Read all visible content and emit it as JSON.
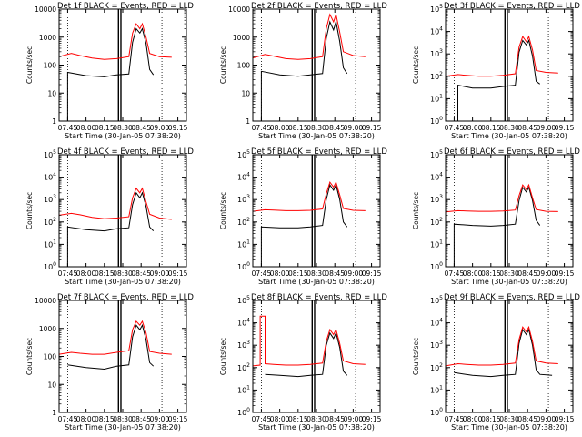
{
  "chart_data": [
    {
      "type": "line",
      "title": "Det 1f BLACK = Events, RED = LLD",
      "xlabel": "Start Time (30-Jan-05 07:38:20)",
      "ylabel": "Counts/sec",
      "yscale": "log",
      "ytick_style": "plain",
      "ylim": [
        1,
        10000
      ],
      "ytick_labels": [
        "1",
        "10",
        "100",
        "1000",
        "10000"
      ],
      "xtick_labels": [
        "07:45",
        "08:00",
        "08:15",
        "08:30",
        "08:45",
        "09:00",
        "09:15"
      ],
      "series": [
        {
          "name": "BLACK = Events",
          "color": "#000000",
          "x": [
            "07:45",
            "07:45",
            "08:00",
            "08:15",
            "08:25",
            "08:35",
            "08:38",
            "08:41",
            "08:44",
            "08:46",
            "08:49",
            "08:52",
            "08:55"
          ],
          "y": [
            1,
            55,
            42,
            38,
            45,
            48,
            650,
            2000,
            1400,
            2000,
            600,
            70,
            45
          ]
        },
        {
          "name": "RED = LLD",
          "color": "#ff0000",
          "x": [
            "07:38",
            "07:48",
            "07:55",
            "08:05",
            "08:15",
            "08:25",
            "08:35",
            "08:38",
            "08:41",
            "08:44",
            "08:46",
            "08:49",
            "08:52",
            "09:00",
            "09:10"
          ],
          "y": [
            200,
            260,
            220,
            180,
            160,
            170,
            200,
            1400,
            3000,
            2000,
            3000,
            1000,
            260,
            200,
            190
          ]
        }
      ]
    },
    {
      "type": "line",
      "title": "Det 2f BLACK = Events, RED = LLD",
      "xlabel": "Start Time (30-Jan-05 07:38:20)",
      "ylabel": "Counts/sec",
      "yscale": "log",
      "ytick_style": "plain",
      "ylim": [
        1,
        10000
      ],
      "ytick_labels": [
        "1",
        "10",
        "100",
        "1000",
        "10000"
      ],
      "xtick_labels": [
        "07:45",
        "08:00",
        "08:15",
        "08:30",
        "08:45",
        "09:00",
        "09:15"
      ],
      "series": [
        {
          "name": "BLACK = Events",
          "color": "#000000",
          "x": [
            "07:45",
            "07:45",
            "08:00",
            "08:15",
            "08:25",
            "08:35",
            "08:38",
            "08:41",
            "08:44",
            "08:46",
            "08:49",
            "08:52",
            "08:55"
          ],
          "y": [
            1,
            60,
            45,
            40,
            45,
            50,
            900,
            3500,
            1800,
            3600,
            700,
            80,
            50
          ]
        },
        {
          "name": "RED = LLD",
          "color": "#ff0000",
          "x": [
            "07:38",
            "07:48",
            "07:55",
            "08:05",
            "08:15",
            "08:25",
            "08:35",
            "08:38",
            "08:41",
            "08:44",
            "08:46",
            "08:49",
            "08:52",
            "09:00",
            "09:10"
          ],
          "y": [
            180,
            240,
            210,
            170,
            160,
            170,
            200,
            2000,
            6500,
            3500,
            6500,
            1500,
            300,
            220,
            200
          ]
        }
      ]
    },
    {
      "type": "line",
      "title": "Det 3f BLACK = Events, RED = LLD",
      "xlabel": "Start Time (30-Jan-05 07:38:20)",
      "ylabel": "Counts/sec",
      "yscale": "log",
      "ytick_style": "exp",
      "ylim": [
        1,
        100000
      ],
      "ytick_labels": [
        "10^0",
        "10^1",
        "10^2",
        "10^3",
        "10^4",
        "10^5"
      ],
      "xtick_labels": [
        "07:45",
        "08:00",
        "08:15",
        "08:30",
        "08:45",
        "09:00",
        "09:15"
      ],
      "series": [
        {
          "name": "BLACK = Events",
          "color": "#000000",
          "x": [
            "07:48",
            "07:48",
            "08:00",
            "08:15",
            "08:25",
            "08:35",
            "08:38",
            "08:41",
            "08:44",
            "08:46",
            "08:49",
            "08:52",
            "08:55"
          ],
          "y": [
            1,
            40,
            30,
            30,
            35,
            40,
            1200,
            4000,
            2500,
            4000,
            800,
            60,
            45
          ]
        },
        {
          "name": "RED = LLD",
          "color": "#ff0000",
          "x": [
            "07:38",
            "07:48",
            "07:55",
            "08:05",
            "08:15",
            "08:25",
            "08:35",
            "08:38",
            "08:41",
            "08:44",
            "08:46",
            "08:49",
            "08:52",
            "09:00",
            "09:10"
          ],
          "y": [
            100,
            120,
            110,
            100,
            100,
            110,
            130,
            2000,
            6000,
            3500,
            6000,
            1500,
            180,
            150,
            140
          ]
        }
      ]
    },
    {
      "type": "line",
      "title": "Det 4f BLACK = Events, RED = LLD",
      "xlabel": "Start Time (30-Jan-05 07:38:20)",
      "ylabel": "Counts/sec",
      "yscale": "log",
      "ytick_style": "exp",
      "ylim": [
        1,
        100000
      ],
      "ytick_labels": [
        "10^0",
        "10^1",
        "10^2",
        "10^3",
        "10^4",
        "10^5"
      ],
      "xtick_labels": [
        "07:45",
        "08:00",
        "08:15",
        "08:30",
        "08:45",
        "09:00",
        "09:15"
      ],
      "series": [
        {
          "name": "BLACK = Events",
          "color": "#000000",
          "x": [
            "07:45",
            "07:45",
            "08:00",
            "08:15",
            "08:25",
            "08:35",
            "08:38",
            "08:41",
            "08:44",
            "08:46",
            "08:49",
            "08:52",
            "08:55"
          ],
          "y": [
            1,
            60,
            45,
            40,
            50,
            55,
            600,
            2000,
            1200,
            2000,
            500,
            60,
            40
          ]
        },
        {
          "name": "RED = LLD",
          "color": "#ff0000",
          "x": [
            "07:38",
            "07:48",
            "07:55",
            "08:05",
            "08:15",
            "08:25",
            "08:35",
            "08:38",
            "08:41",
            "08:44",
            "08:46",
            "08:49",
            "08:52",
            "09:00",
            "09:10"
          ],
          "y": [
            200,
            240,
            210,
            160,
            140,
            150,
            170,
            1200,
            3200,
            2000,
            3200,
            800,
            220,
            150,
            130
          ]
        }
      ]
    },
    {
      "type": "line",
      "title": "Det 5f BLACK = Events, RED = LLD",
      "xlabel": "Start Time (30-Jan-05 07:38:20)",
      "ylabel": "Counts/sec",
      "yscale": "log",
      "ytick_style": "exp",
      "ylim": [
        1,
        100000
      ],
      "ytick_labels": [
        "10^0",
        "10^1",
        "10^2",
        "10^3",
        "10^4",
        "10^5"
      ],
      "xtick_labels": [
        "07:45",
        "08:00",
        "08:15",
        "08:30",
        "08:45",
        "09:00",
        "09:15"
      ],
      "series": [
        {
          "name": "BLACK = Events",
          "color": "#000000",
          "x": [
            "07:45",
            "07:45",
            "08:00",
            "08:15",
            "08:25",
            "08:35",
            "08:38",
            "08:41",
            "08:44",
            "08:46",
            "08:49",
            "08:52",
            "08:55"
          ],
          "y": [
            1,
            60,
            55,
            55,
            60,
            70,
            1000,
            4500,
            2600,
            4500,
            1000,
            100,
            60
          ]
        },
        {
          "name": "RED = LLD",
          "color": "#ff0000",
          "x": [
            "07:38",
            "07:48",
            "07:55",
            "08:05",
            "08:15",
            "08:25",
            "08:35",
            "08:38",
            "08:41",
            "08:44",
            "08:46",
            "08:49",
            "08:52",
            "09:00",
            "09:10"
          ],
          "y": [
            300,
            350,
            340,
            320,
            320,
            330,
            380,
            1800,
            6000,
            3600,
            6000,
            1600,
            400,
            330,
            320
          ]
        }
      ]
    },
    {
      "type": "line",
      "title": "Det 6f BLACK = Events, RED = LLD",
      "xlabel": "Start Time (30-Jan-05 07:38:20)",
      "ylabel": "Counts/sec",
      "yscale": "log",
      "ytick_style": "exp",
      "ylim": [
        1,
        100000
      ],
      "ytick_labels": [
        "10^0",
        "10^1",
        "10^2",
        "10^3",
        "10^4",
        "10^5"
      ],
      "xtick_labels": [
        "07:45",
        "08:00",
        "08:15",
        "08:30",
        "08:45",
        "09:00",
        "09:15"
      ],
      "series": [
        {
          "name": "BLACK = Events",
          "color": "#000000",
          "x": [
            "07:45",
            "07:45",
            "08:00",
            "08:15",
            "08:25",
            "08:35",
            "08:38",
            "08:41",
            "08:44",
            "08:46",
            "08:49",
            "08:52",
            "08:55"
          ],
          "y": [
            1,
            80,
            70,
            65,
            70,
            80,
            900,
            3500,
            2200,
            3500,
            900,
            120,
            70
          ]
        },
        {
          "name": "RED = LLD",
          "color": "#ff0000",
          "x": [
            "07:38",
            "07:48",
            "07:55",
            "08:05",
            "08:15",
            "08:25",
            "08:35",
            "08:38",
            "08:41",
            "08:44",
            "08:46",
            "08:49",
            "08:52",
            "09:00",
            "09:10"
          ],
          "y": [
            280,
            320,
            310,
            300,
            300,
            310,
            340,
            1500,
            4500,
            2800,
            4500,
            1200,
            360,
            300,
            290
          ]
        }
      ]
    },
    {
      "type": "line",
      "title": "Det 7f BLACK = Events, RED = LLD",
      "xlabel": "Start Time (30-Jan-05 07:38:20)",
      "ylabel": "Counts/sec",
      "yscale": "log",
      "ytick_style": "plain",
      "ylim": [
        1,
        10000
      ],
      "ytick_labels": [
        "1",
        "10",
        "100",
        "1000",
        "10000"
      ],
      "xtick_labels": [
        "07:45",
        "08:00",
        "08:15",
        "08:30",
        "08:45",
        "09:00",
        "09:15"
      ],
      "series": [
        {
          "name": "BLACK = Events",
          "color": "#000000",
          "x": [
            "07:45",
            "08:00",
            "08:15",
            "08:25",
            "08:35",
            "08:38",
            "08:41",
            "08:44",
            "08:46",
            "08:49",
            "08:52",
            "08:55"
          ],
          "y": [
            50,
            40,
            35,
            45,
            50,
            500,
            1300,
            900,
            1300,
            400,
            60,
            45
          ]
        },
        {
          "name": "RED = LLD",
          "color": "#ff0000",
          "x": [
            "07:38",
            "07:48",
            "07:55",
            "08:05",
            "08:15",
            "08:25",
            "08:35",
            "08:38",
            "08:41",
            "08:44",
            "08:46",
            "08:49",
            "08:52",
            "09:00",
            "09:10"
          ],
          "y": [
            120,
            140,
            130,
            120,
            120,
            140,
            160,
            900,
            1800,
            1300,
            1800,
            700,
            150,
            130,
            120
          ]
        }
      ]
    },
    {
      "type": "line",
      "title": "Det 8f BLACK = Events, RED = LLD",
      "xlabel": "Start Time (30-Jan-05 07:38:20)",
      "ylabel": "Counts/sec",
      "yscale": "log",
      "ytick_style": "exp",
      "ylim": [
        1,
        100000
      ],
      "ytick_labels": [
        "10^0",
        "10^1",
        "10^2",
        "10^3",
        "10^4",
        "10^5"
      ],
      "xtick_labels": [
        "07:45",
        "08:00",
        "08:15",
        "08:30",
        "08:45",
        "09:00",
        "09:15"
      ],
      "series": [
        {
          "name": "BLACK = Events",
          "color": "#000000",
          "x": [
            "07:48",
            "08:00",
            "08:15",
            "08:25",
            "08:35",
            "08:38",
            "08:41",
            "08:44",
            "08:46",
            "08:49",
            "08:52",
            "08:55"
          ],
          "y": [
            50,
            45,
            40,
            45,
            50,
            1000,
            3500,
            2000,
            3500,
            800,
            70,
            45
          ]
        },
        {
          "name": "RED = LLD",
          "color": "#ff0000",
          "x": [
            "07:38",
            "07:44",
            "07:44",
            "07:48",
            "07:48",
            "07:55",
            "08:05",
            "08:15",
            "08:25",
            "08:35",
            "08:38",
            "08:41",
            "08:44",
            "08:46",
            "08:49",
            "08:52",
            "09:00",
            "09:10"
          ],
          "y": [
            120,
            130,
            20000,
            20000,
            150,
            140,
            130,
            130,
            140,
            160,
            1500,
            5000,
            3000,
            5000,
            1200,
            200,
            150,
            140
          ]
        }
      ]
    },
    {
      "type": "line",
      "title": "Det 9f BLACK = Events, RED = LLD",
      "xlabel": "Start Time (30-Jan-05 07:38:20)",
      "ylabel": "Counts/sec",
      "yscale": "log",
      "ytick_style": "exp",
      "ylim": [
        1,
        100000
      ],
      "ytick_labels": [
        "10^0",
        "10^1",
        "10^2",
        "10^3",
        "10^4",
        "10^5"
      ],
      "xtick_labels": [
        "07:45",
        "08:00",
        "08:15",
        "08:30",
        "08:45",
        "09:00",
        "09:15"
      ],
      "series": [
        {
          "name": "BLACK = Events",
          "color": "#000000",
          "x": [
            "07:45",
            "08:00",
            "08:15",
            "08:25",
            "08:35",
            "08:38",
            "08:41",
            "08:44",
            "08:46",
            "08:49",
            "08:52",
            "08:55",
            "09:05"
          ],
          "y": [
            60,
            45,
            40,
            45,
            50,
            1200,
            5000,
            3000,
            5000,
            1000,
            80,
            50,
            45
          ]
        },
        {
          "name": "RED = LLD",
          "color": "#ff0000",
          "x": [
            "07:38",
            "07:48",
            "07:55",
            "08:05",
            "08:15",
            "08:25",
            "08:35",
            "08:38",
            "08:41",
            "08:44",
            "08:46",
            "08:49",
            "08:52",
            "09:00",
            "09:10"
          ],
          "y": [
            120,
            150,
            140,
            130,
            130,
            140,
            160,
            1800,
            6500,
            4000,
            6500,
            1500,
            200,
            160,
            150
          ]
        }
      ]
    }
  ]
}
